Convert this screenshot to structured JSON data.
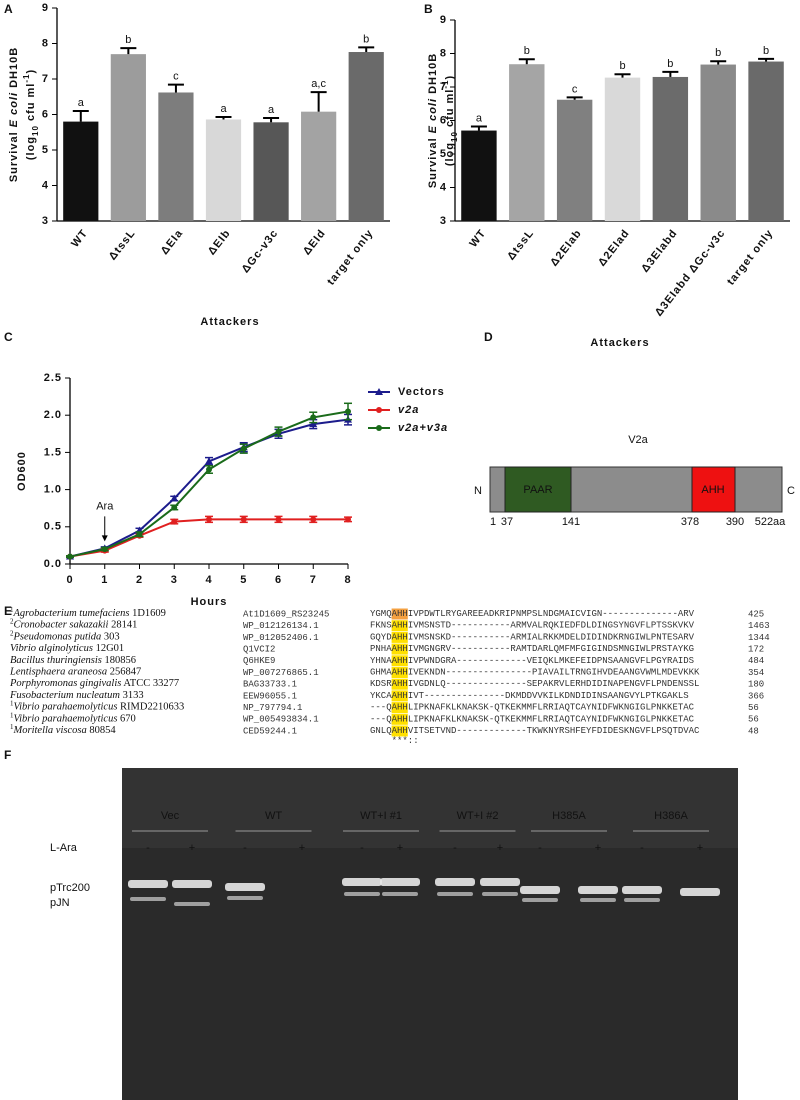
{
  "panel_labels": [
    "A",
    "B",
    "C",
    "D",
    "E",
    "F"
  ],
  "chart_data": [
    {
      "type": "bar",
      "ylabel": [
        "Survival ",
        "E coli",
        " DH10B"
      ],
      "ylabel_units": [
        "(log",
        "10",
        " cfu ml",
        "-1",
        ")"
      ],
      "xlabel": "Attackers",
      "categories": [
        "WT",
        "ΔtssL",
        "ΔEIa",
        "ΔEIb",
        "ΔGc-v3c",
        "ΔEId",
        "target only"
      ],
      "values": [
        5.8,
        7.7,
        6.62,
        5.86,
        5.78,
        6.08,
        7.76
      ],
      "errors": [
        0.3,
        0.17,
        0.22,
        0.07,
        0.12,
        0.55,
        0.13
      ],
      "annotations": [
        "a",
        "b",
        "c",
        "a",
        "a",
        "a,c",
        "b"
      ],
      "colors": [
        "#111111",
        "#9c9c9c",
        "#7d7d7d",
        "#d8d8d8",
        "#575757",
        "#a3a3a3",
        "#6a6a6a"
      ],
      "ylim": [
        3,
        9
      ],
      "yticks": [
        3,
        4,
        5,
        6,
        7,
        8,
        9
      ]
    },
    {
      "type": "bar",
      "ylabel": [
        "Survival ",
        "E coli",
        " DH10B"
      ],
      "ylabel_units": [
        "(log",
        "10",
        " cfu ml",
        "-1",
        ")"
      ],
      "xlabel": "Attackers",
      "categories": [
        "WT",
        "ΔtssL",
        "Δ2EIab",
        "Δ2EIad",
        "Δ3EIabd",
        "Δ3EIabd ΔGc-v3c",
        "target only"
      ],
      "values": [
        5.7,
        7.68,
        6.62,
        7.28,
        7.3,
        7.67,
        7.76
      ],
      "errors": [
        0.12,
        0.15,
        0.07,
        0.1,
        0.15,
        0.1,
        0.08
      ],
      "annotations": [
        "a",
        "b",
        "c",
        "b",
        "b",
        "b",
        "b"
      ],
      "colors": [
        "#111111",
        "#a5a5a5",
        "#808080",
        "#d9d9d9",
        "#6b6b6b",
        "#8a8a8a",
        "#6a6a6a"
      ],
      "ylim": [
        3,
        9
      ],
      "yticks": [
        3,
        4,
        5,
        6,
        7,
        8,
        9
      ]
    },
    {
      "type": "line",
      "xlabel": "Hours",
      "ylabel": "OD600",
      "x": [
        0,
        1,
        2,
        3,
        4,
        5,
        6,
        7,
        8
      ],
      "series": [
        {
          "name": "Vectors",
          "color": "#1c1c8c",
          "marker": "triangle",
          "values": [
            0.1,
            0.21,
            0.45,
            0.88,
            1.38,
            1.57,
            1.75,
            1.88,
            1.94
          ],
          "errors": [
            0.01,
            0.02,
            0.03,
            0.03,
            0.05,
            0.06,
            0.06,
            0.06,
            0.07
          ]
        },
        {
          "name": "v2a",
          "color": "#e02020",
          "marker": "circle",
          "values": [
            0.1,
            0.18,
            0.38,
            0.57,
            0.6,
            0.6,
            0.6,
            0.6,
            0.6
          ],
          "errors": [
            0.01,
            0.02,
            0.02,
            0.03,
            0.04,
            0.04,
            0.04,
            0.04,
            0.03
          ]
        },
        {
          "name": "v2a+v3a",
          "color": "#1a6b1a",
          "marker": "circle",
          "values": [
            0.1,
            0.2,
            0.4,
            0.76,
            1.27,
            1.55,
            1.78,
            1.97,
            2.05
          ],
          "errors": [
            0.01,
            0.02,
            0.03,
            0.03,
            0.05,
            0.06,
            0.06,
            0.07,
            0.11
          ]
        }
      ],
      "annotation": {
        "text": "Ara",
        "x": 1
      },
      "xlim": [
        0,
        8
      ],
      "xticks": [
        0,
        1,
        2,
        3,
        4,
        5,
        6,
        7,
        8
      ],
      "ylim": [
        0,
        2.5
      ],
      "yticks": [
        {
          "value": 0,
          "label": "0.0"
        },
        0.5,
        {
          "value": 1,
          "label": "1.0"
        },
        1.5,
        {
          "value": 2,
          "label": "2.0"
        },
        2.5
      ]
    }
  ],
  "diagram": {
    "title": "V2a",
    "n_label": "N",
    "c_label": "C",
    "domains": [
      "PAAR",
      "AHH"
    ],
    "positions": [
      "1",
      "37",
      "141",
      "378",
      "390",
      "522aa"
    ]
  },
  "alignment": {
    "highlight_color": "#ffe000",
    "first_highlight_color": "#f4a040",
    "rows": [
      {
        "sup": "1",
        "organism": "Agrobacterium tumefaciens",
        "strain": " 1D1609",
        "accession": "At1D1609_RS23245",
        "before": "YGMQ",
        "motif": "AHH",
        "after": "IVPDWTLRYGAREEADKRIPNMPSLNDGMAICVIGN--------------ARV",
        "end": 425
      },
      {
        "sup": "2",
        "organism": "Cronobacter sakazakii",
        "strain": " 28141",
        "accession": "WP_012126134.1",
        "before": "FKNS",
        "motif": "AHH",
        "after": "IVMSNSTD-----------ARMVALRQKIEDFDLDINGSYNGVFLPTSSKVKV",
        "end": 1463
      },
      {
        "sup": "2",
        "organism": "Pseudomonas putida",
        "strain": " 303",
        "accession": "WP_012052406.1",
        "before": "GQYD",
        "motif": "AHH",
        "after": "IVMSNSKD-----------ARMIALRKKMDELDIDINDKRNGIWLPNTESARV",
        "end": 1344
      },
      {
        "organism": "Vibrio alginolyticus",
        "strain": " 12G01",
        "accession": "Q1VCI2",
        "before": "PNHA",
        "motif": "AHH",
        "after": "IVMGNGRV-----------RAMTDARLQMFMFGIGINDSMNGIWLPRSTAYKG",
        "end": 172
      },
      {
        "organism": "Bacillus thuringiensis",
        "strain": " 180856",
        "accession": "Q6HKE9",
        "before": "YHNA",
        "motif": "AHH",
        "after": "IVPWNDGRA-------------VEIQKLMKEFEIDPNSAANGVFLPGYRAIDS",
        "end": 484
      },
      {
        "organism": "Lentisphaera araneosa",
        "strain": " 256847",
        "accession": "WP_007276865.1",
        "before": "GHMA",
        "motif": "AHH",
        "after": "IVEKNDN----------------PIAVAILTRNGIHVDEAANGVWMLMDEVKKK",
        "end": 354
      },
      {
        "organism": "Porphyromonas gingivalis",
        "strain": " ATCC 33277",
        "accession": "BAG33733.1",
        "before": "KDSR",
        "motif": "AHH",
        "after": "IVGDNLQ---------------SEPAKRVLERHDIDINAPENGVFLPNDENSSL",
        "end": 180
      },
      {
        "organism": "Fusobacterium nucleatum",
        "strain": " 3133",
        "accession": "EEW96055.1",
        "before": "YKCA",
        "motif": "AHH",
        "after": "IVT---------------DKMDDVVKILKDNDIDINSAANGVYLPTKGAKLS",
        "end": 366
      },
      {
        "sup": "1",
        "organism": "Vibrio parahaemolyticus",
        "strain": " RIMD2210633",
        "accession": "NP_797794.1",
        "before": "---Q",
        "motif": "AHH",
        "after": "LIPKNAFKLKNAKSK-QTKEKMMFLRRIAQTCAYNIDFWKNGIGLPNKKETAC",
        "end": 56
      },
      {
        "sup": "1",
        "organism": "Vibrio parahaemolyticus",
        "strain": " 670",
        "accession": "WP_005493834.1",
        "before": "---Q",
        "motif": "AHH",
        "after": "LIPKNAFKLKNAKSK-QTKEKMMFLRRIAQTCAYNIDFWKNGIGLPNKKETAC",
        "end": 56
      },
      {
        "sup": "1",
        "organism": "Moritella viscosa",
        "strain": " 80854",
        "accession": "CED59244.1",
        "before": "GNLQ",
        "motif": "AHH",
        "after": "VITSETVND-------------TKWKNYRSHFEYFDIDESKNGVFLPSQTDVAC",
        "end": 48
      }
    ],
    "consensus": "***::"
  },
  "gel": {
    "condition": "L-Ara",
    "groups": [
      "Vec",
      "WT",
      "WT+I #1",
      "WT+I #2",
      "H385A",
      "H386A"
    ],
    "signs": [
      "-",
      "+",
      "-",
      "+",
      "-",
      "+",
      "-",
      "+",
      "-",
      "+",
      "-",
      "+"
    ],
    "bands": [
      "pTrc200",
      "pJN"
    ]
  }
}
